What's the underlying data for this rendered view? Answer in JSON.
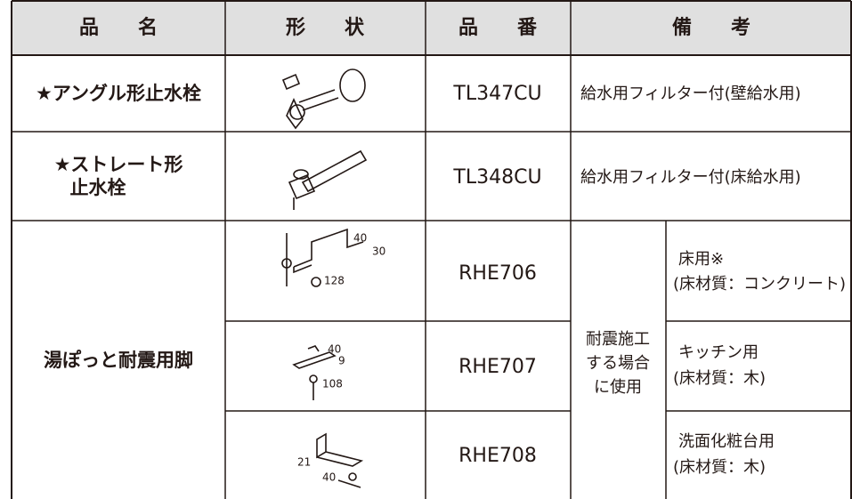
{
  "table": {
    "header": [
      "品　　名",
      "形　　状",
      "品　　番",
      "備　　考"
    ],
    "rows": [
      {
        "name": [
          "★アングル形止水栓"
        ],
        "part": "TL347CU",
        "note": "給水用フィルター付(壁給水用)"
      },
      {
        "name": [
          "★ストレート形",
          "止水栓"
        ],
        "part": "TL348CU",
        "note": "給水用フィルター付(床給水用)"
      }
    ],
    "group": {
      "name": "湯ぽっと耐震用脚",
      "shared_note": [
        "耐震施工",
        "する場合",
        "に使用"
      ],
      "items": [
        {
          "dims": [
            "40",
            "30",
            "128"
          ],
          "part": "RHE706",
          "note": [
            "床用※",
            "(床材質：コンクリート)"
          ]
        },
        {
          "dims": [
            "40",
            "9",
            "108"
          ],
          "part": "RHE707",
          "note": [
            "キッチン用",
            "(床材質：木)"
          ]
        },
        {
          "dims": [
            "21",
            "40"
          ],
          "part": "RHE708",
          "note": [
            "洗面化粧台用",
            "(床材質：木)"
          ]
        }
      ]
    }
  }
}
